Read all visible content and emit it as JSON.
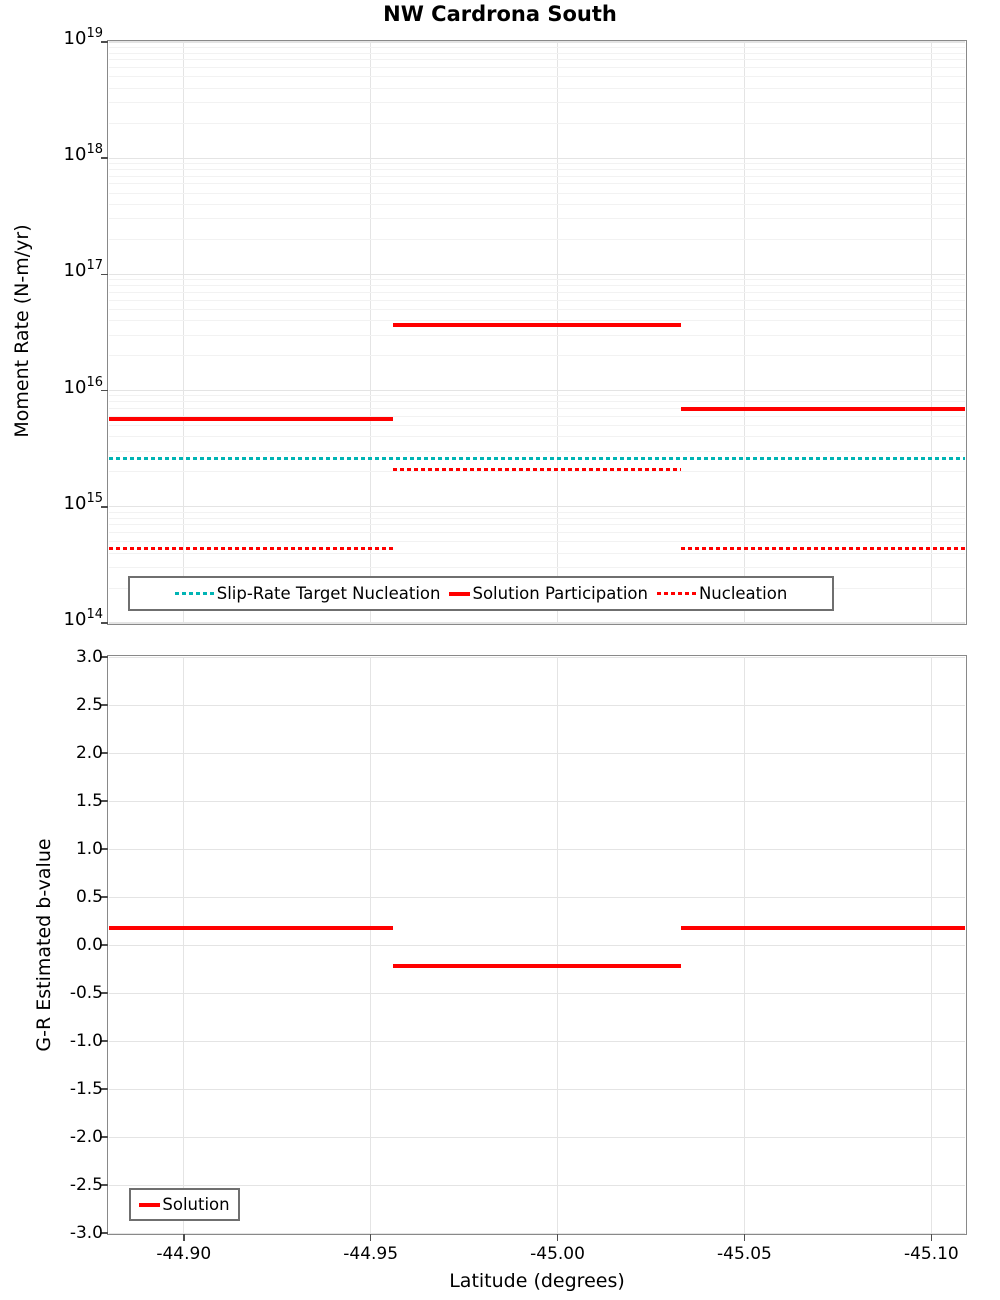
{
  "title": "NW Cardrona South",
  "x_axis": {
    "label": "Latitude (degrees)",
    "ticks": [
      {
        "label": "-44.90",
        "value": -44.9
      },
      {
        "label": "-44.95",
        "value": -44.95
      },
      {
        "label": "-45.00",
        "value": -45.0
      },
      {
        "label": "-45.05",
        "value": -45.05
      },
      {
        "label": "-45.10",
        "value": -45.1
      }
    ]
  },
  "colors": {
    "solution_red": "#ff0000",
    "target_teal": "#00b4b4",
    "grid_major": "#e4e4e4",
    "grid_minor": "#f2f2f2",
    "frame_gray": "#898989"
  },
  "chart_data": [
    {
      "type": "line",
      "subtype": "step-horizontal-segments",
      "title": "NW Cardrona South",
      "xlabel": "Latitude (degrees)",
      "ylabel": "Moment Rate (N-m/yr)",
      "y_scale": "log",
      "ylim": [
        100000000000000.0,
        1e+19
      ],
      "xlim": [
        -44.88,
        -45.109
      ],
      "x_reversed": true,
      "grid": true,
      "y_tick_exponents": [
        19,
        18,
        17,
        16,
        15,
        14
      ],
      "legend_position": "lower left, horizontal",
      "series": [
        {
          "name": "Slip-Rate Target Nucleation",
          "line_style": "dotted",
          "color": "#00b4b4",
          "segments": [
            {
              "x": [
                -44.88,
                -45.109
              ],
              "y": 2600000000000000.0
            }
          ]
        },
        {
          "name": "Solution Participation",
          "line_style": "solid",
          "color": "#ff0000",
          "segments": [
            {
              "x": [
                -44.88,
                -44.956
              ],
              "y": 5700000000000000.0
            },
            {
              "x": [
                -44.956,
                -45.033
              ],
              "y": 3.7e+16
            },
            {
              "x": [
                -45.033,
                -45.109
              ],
              "y": 6900000000000000.0
            }
          ]
        },
        {
          "name": "Nucleation",
          "line_style": "dotted",
          "color": "#ff0000",
          "segments": [
            {
              "x": [
                -44.88,
                -44.956
              ],
              "y": 440000000000000.0
            },
            {
              "x": [
                -44.956,
                -45.033
              ],
              "y": 2100000000000000.0
            },
            {
              "x": [
                -45.033,
                -45.109
              ],
              "y": 440000000000000.0
            }
          ]
        }
      ]
    },
    {
      "type": "line",
      "subtype": "step-horizontal-segments",
      "xlabel": "Latitude (degrees)",
      "ylabel": "G-R Estimated b-value",
      "y_scale": "linear",
      "ylim": [
        -3.0,
        3.0
      ],
      "xlim": [
        -44.88,
        -45.109
      ],
      "x_reversed": true,
      "grid": true,
      "y_ticks": [
        {
          "label": "3.0",
          "value": 3.0
        },
        {
          "label": "2.5",
          "value": 2.5
        },
        {
          "label": "2.0",
          "value": 2.0
        },
        {
          "label": "1.5",
          "value": 1.5
        },
        {
          "label": "1.0",
          "value": 1.0
        },
        {
          "label": "0.5",
          "value": 0.5
        },
        {
          "label": "0.0",
          "value": 0.0
        },
        {
          "label": "-0.5",
          "value": -0.5
        },
        {
          "label": "-1.0",
          "value": -1.0
        },
        {
          "label": "-1.5",
          "value": -1.5
        },
        {
          "label": "-2.0",
          "value": -2.0
        },
        {
          "label": "-2.5",
          "value": -2.5
        },
        {
          "label": "-3.0",
          "value": -3.0
        }
      ],
      "legend_position": "lower left",
      "series": [
        {
          "name": "Solution",
          "line_style": "solid",
          "color": "#ff0000",
          "segments": [
            {
              "x": [
                -44.88,
                -44.956
              ],
              "y": 0.18
            },
            {
              "x": [
                -44.956,
                -45.033
              ],
              "y": -0.22
            },
            {
              "x": [
                -45.033,
                -45.109
              ],
              "y": 0.18
            }
          ]
        }
      ]
    }
  ]
}
